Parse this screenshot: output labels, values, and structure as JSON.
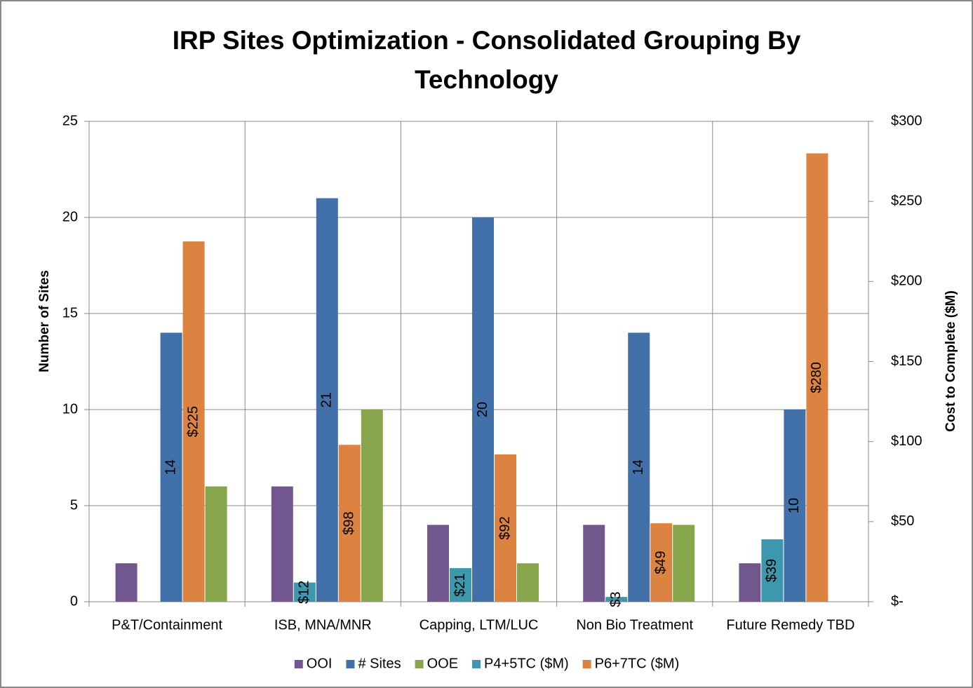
{
  "chart_data": {
    "type": "bar",
    "title": "IRP Sites Optimization - Consolidated Grouping By Technology",
    "y_label": "Number of Sites",
    "y2_label": "Cost to Complete ($M)",
    "categories": [
      "P&T/Containment",
      "ISB, MNA/MNR",
      "Capping, LTM/LUC",
      "Non Bio Treatment",
      "Future Remedy TBD"
    ],
    "series": [
      {
        "name": "OOI",
        "color": "#72578f",
        "values": [
          2,
          6,
          4,
          4,
          2
        ]
      },
      {
        "name": "# Sites",
        "color": "#4270a8",
        "values": [
          14,
          21,
          20,
          14,
          10
        ],
        "value_labels": [
          "14",
          "21",
          "20",
          "14",
          "10"
        ]
      },
      {
        "name": "OOE",
        "color": "#87a54a",
        "values": [
          6,
          10,
          2,
          4,
          null
        ]
      },
      {
        "name": "P4+5TC ($M)",
        "color": "#3d97ad",
        "axis": "y2",
        "values": [
          null,
          12,
          21,
          3,
          39
        ],
        "value_labels": [
          null,
          "$12",
          "$21",
          "$3",
          "$39"
        ]
      },
      {
        "name": "P6+7TC ($M)",
        "color": "#dc8342",
        "axis": "y2",
        "values": [
          225,
          98,
          92,
          49,
          280
        ],
        "value_labels": [
          "$225",
          "$98",
          "$92",
          "$49",
          "$280"
        ]
      }
    ],
    "ylim": [
      0,
      25
    ],
    "yticks": [
      0,
      5,
      10,
      15,
      20,
      25
    ],
    "y2lim": [
      0,
      300
    ],
    "y2ticks": [
      {
        "value": 0,
        "label": "$-"
      },
      {
        "value": 50,
        "label": "$50"
      },
      {
        "value": 100,
        "label": "$100"
      },
      {
        "value": 150,
        "label": "$150"
      },
      {
        "value": 200,
        "label": "$200"
      },
      {
        "value": 250,
        "label": "$250"
      },
      {
        "value": 300,
        "label": "$300"
      }
    ],
    "grid": true,
    "legend": "bottom"
  }
}
